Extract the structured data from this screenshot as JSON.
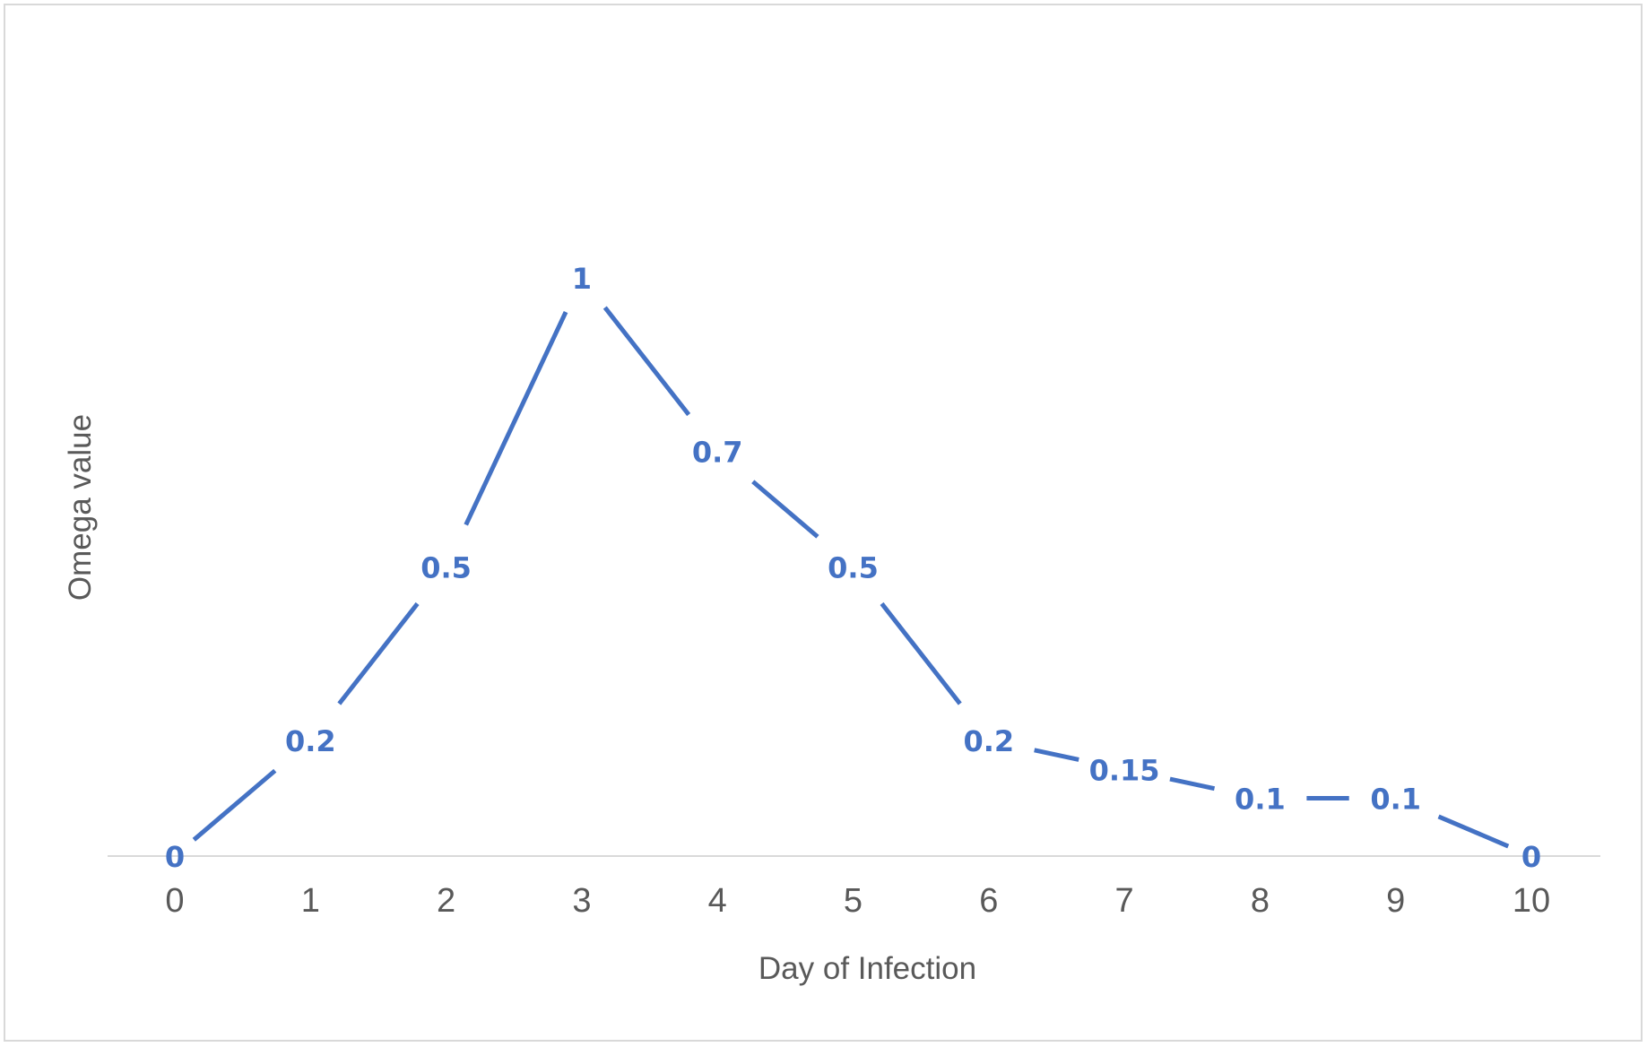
{
  "chart_data": {
    "type": "line",
    "x": [
      0,
      1,
      2,
      3,
      4,
      5,
      6,
      7,
      8,
      9,
      10
    ],
    "series": [
      {
        "values": [
          0,
          0.2,
          0.5,
          1,
          0.7,
          0.5,
          0.2,
          0.15,
          0.1,
          0.1,
          0
        ],
        "data_labels": [
          "0",
          "0.2",
          "0.5",
          "1",
          "0.7",
          "0.5",
          "0.2",
          "0.15",
          "0.1",
          "0.1",
          "0"
        ],
        "color": "#4472c4"
      }
    ],
    "x_tick_labels": [
      "0",
      "1",
      "2",
      "3",
      "4",
      "5",
      "6",
      "7",
      "8",
      "9",
      "10"
    ],
    "xlabel": "Day of Infection",
    "ylabel": "Omega value",
    "title": "",
    "ylim": [
      0,
      1.1
    ],
    "grid": false,
    "legend": "none",
    "axis_color": "#d9d9d9",
    "text_color": "#595959"
  }
}
